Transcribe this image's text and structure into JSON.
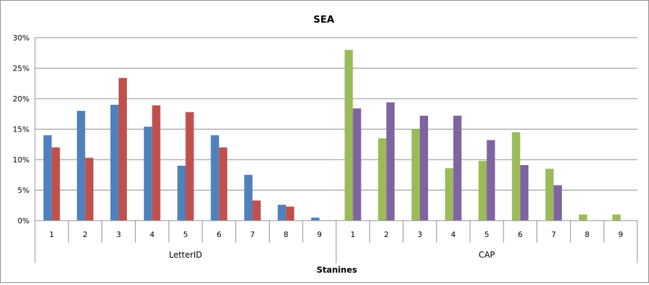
{
  "chart_data": {
    "type": "bar",
    "title": "SEA",
    "xlabel": "Stanines",
    "ylabel": "",
    "ylim": [
      0,
      30
    ],
    "yticks": [
      "0%",
      "5%",
      "10%",
      "15%",
      "20%",
      "25%",
      "30%"
    ],
    "grid": true,
    "legend": "none",
    "groups": [
      {
        "label": "LetterID",
        "categories": [
          "1",
          "2",
          "3",
          "4",
          "5",
          "6",
          "7",
          "8",
          "9"
        ],
        "series": [
          {
            "color": "#4f81bd",
            "values": [
              14.0,
              18.0,
              19.0,
              15.4,
              9.0,
              14.0,
              7.5,
              2.6,
              0.5
            ]
          },
          {
            "color": "#c0504d",
            "values": [
              12.0,
              10.3,
              23.4,
              18.9,
              17.8,
              12.0,
              3.3,
              2.3,
              0
            ]
          }
        ]
      },
      {
        "label": "CAP",
        "categories": [
          "1",
          "2",
          "3",
          "4",
          "5",
          "6",
          "7",
          "8",
          "9"
        ],
        "series": [
          {
            "color": "#9bbb59",
            "values": [
              28.0,
              13.5,
              15.0,
              8.6,
              9.8,
              14.5,
              8.5,
              1.0,
              1.0
            ]
          },
          {
            "color": "#8064a2",
            "values": [
              18.4,
              19.4,
              17.2,
              17.2,
              13.2,
              9.1,
              5.8,
              0,
              0
            ]
          }
        ]
      }
    ]
  }
}
